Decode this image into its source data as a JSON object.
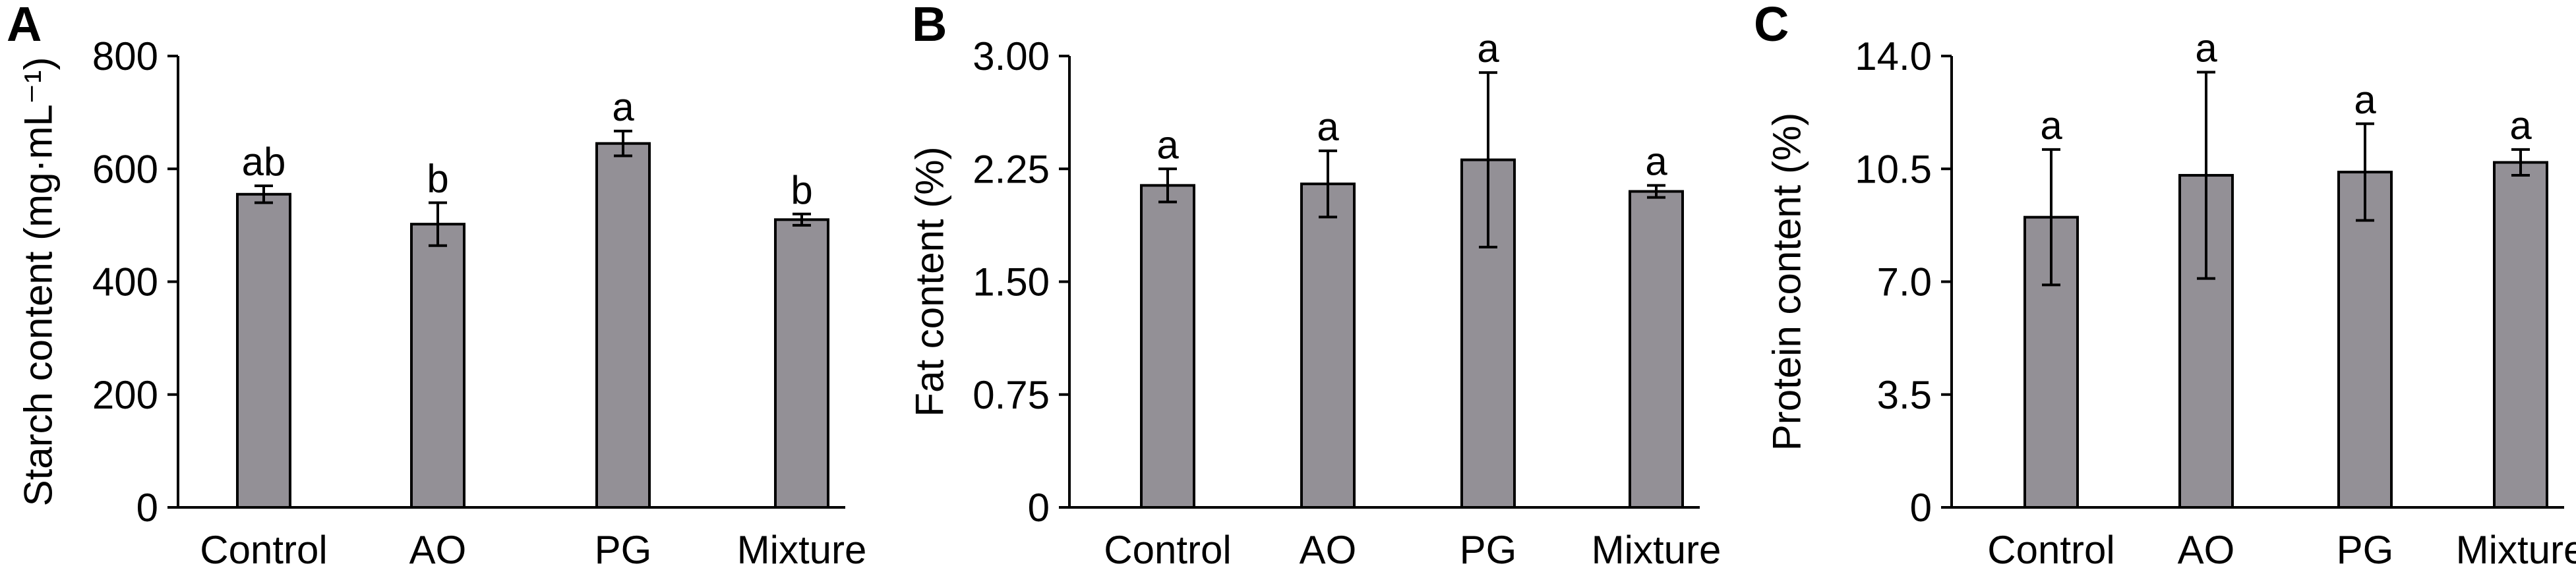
{
  "style": {
    "bar_color": "#939096",
    "bar_stroke": "#000000",
    "axis_color": "#000000"
  },
  "chart_data": [
    {
      "type": "bar",
      "panel": "A",
      "categories": [
        "Control",
        "AO",
        "PG",
        "Mixture"
      ],
      "values": [
        555,
        502,
        645,
        510
      ],
      "errors": [
        15,
        38,
        22,
        10
      ],
      "significance": [
        "ab",
        "b",
        "a",
        "b"
      ],
      "ylabel": "Starch content (mg·mL⁻¹)",
      "ylim": [
        0,
        800
      ],
      "yticks": [
        "0",
        "200",
        "400",
        "600",
        "800"
      ],
      "grid": false
    },
    {
      "type": "bar",
      "panel": "B",
      "categories": [
        "Control",
        "AO",
        "PG",
        "Mixture"
      ],
      "values": [
        2.14,
        2.15,
        2.31,
        2.1
      ],
      "errors": [
        0.11,
        0.22,
        0.58,
        0.04
      ],
      "significance": [
        "a",
        "a",
        "a",
        "a"
      ],
      "ylabel": "Fat content (%)",
      "ylim": [
        0,
        3.0
      ],
      "yticks": [
        "0",
        "0.75",
        "1.50",
        "2.25",
        "3.00"
      ],
      "grid": false
    },
    {
      "type": "bar",
      "panel": "C",
      "categories": [
        "Control",
        "AO",
        "PG",
        "Mixture"
      ],
      "values": [
        9.0,
        10.3,
        10.4,
        10.7
      ],
      "errors": [
        2.1,
        3.2,
        1.5,
        0.4
      ],
      "significance": [
        "a",
        "a",
        "a",
        "a"
      ],
      "ylabel": "Protein content (%)",
      "ylim": [
        0,
        14.0
      ],
      "yticks": [
        "0",
        "3.5",
        "7.0",
        "10.5",
        "14.0"
      ],
      "grid": false
    }
  ]
}
